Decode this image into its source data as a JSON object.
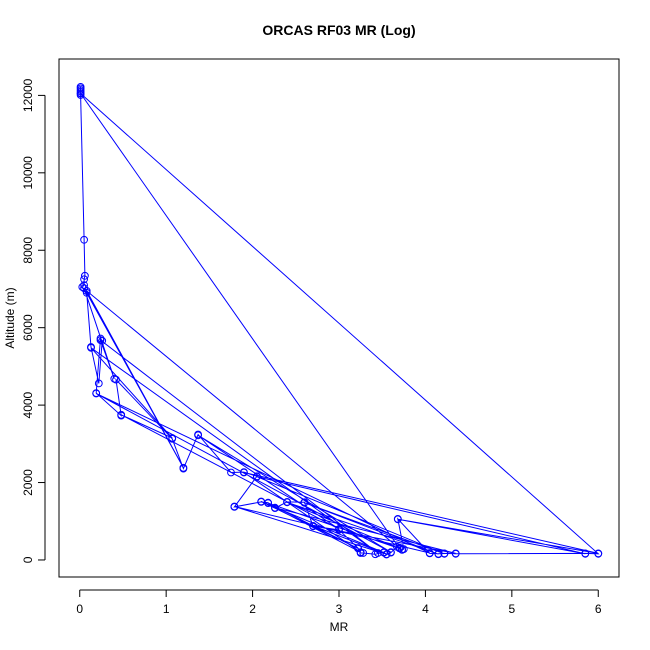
{
  "chart_data": {
    "type": "line",
    "title": "ORCAS RF03 MR (Log)",
    "xlabel": "MR",
    "ylabel": "Altitude (m)",
    "xlim": [
      -0.24,
      6.24
    ],
    "ylim": [
      -440,
      12940
    ],
    "x_ticks": [
      0,
      1,
      2,
      3,
      4,
      5,
      6
    ],
    "y_ticks": [
      0,
      2000,
      4000,
      6000,
      8000,
      10000,
      12000
    ],
    "grid": false,
    "legend": "none",
    "colors": {
      "series": "#0000ff",
      "axis": "#000000",
      "background": "#ffffff"
    },
    "series": [
      {
        "marker": "open-circle",
        "line": true,
        "points": [
          [
            0.01,
            12220
          ],
          [
            0.01,
            12180
          ],
          [
            0.01,
            12140
          ],
          [
            0.01,
            12100
          ],
          [
            0.01,
            12060
          ],
          [
            0.01,
            12010
          ],
          [
            0.05,
            8270
          ],
          [
            0.06,
            7340
          ],
          [
            0.05,
            7250
          ],
          [
            0.05,
            7100
          ],
          [
            0.03,
            7050
          ],
          [
            0.08,
            6900
          ],
          [
            0.13,
            5500
          ],
          [
            0.22,
            4560
          ],
          [
            0.26,
            5660
          ],
          [
            0.24,
            5720
          ],
          [
            0.19,
            4310
          ],
          [
            0.48,
            3730
          ],
          [
            0.42,
            4660
          ],
          [
            1.07,
            3130
          ],
          [
            1.2,
            2360
          ],
          [
            1.37,
            3240
          ],
          [
            1.75,
            2260
          ],
          [
            1.9,
            2270
          ],
          [
            2.05,
            2160
          ],
          [
            1.79,
            1370
          ],
          [
            2.1,
            1500
          ],
          [
            2.18,
            1480
          ],
          [
            2.26,
            1340
          ],
          [
            2.4,
            1500
          ],
          [
            2.6,
            1490
          ],
          [
            2.7,
            870
          ],
          [
            3.0,
            780
          ],
          [
            3.22,
            310
          ],
          [
            3.25,
            180
          ],
          [
            3.28,
            180
          ],
          [
            3.42,
            150
          ],
          [
            3.52,
            200
          ],
          [
            3.55,
            140
          ],
          [
            3.6,
            190
          ],
          [
            3.67,
            340
          ],
          [
            3.7,
            320
          ],
          [
            3.73,
            260
          ],
          [
            3.75,
            280
          ],
          [
            3.68,
            1060
          ],
          [
            4.05,
            170
          ],
          [
            4.15,
            160
          ],
          [
            4.22,
            170
          ],
          [
            4.35,
            160
          ],
          [
            5.85,
            170
          ],
          [
            6.0,
            160
          ],
          [
            0.01,
            12050
          ],
          [
            3.7,
            300
          ],
          [
            0.08,
            6950
          ],
          [
            1.2,
            2380
          ],
          [
            0.05,
            7020
          ],
          [
            0.4,
            4680
          ],
          [
            0.24,
            5680
          ],
          [
            3.45,
            180
          ],
          [
            0.13,
            5480
          ],
          [
            1.07,
            3150
          ],
          [
            0.48,
            3750
          ],
          [
            3.0,
            800
          ],
          [
            1.37,
            3220
          ],
          [
            3.6,
            200
          ],
          [
            0.19,
            4300
          ],
          [
            4.05,
            180
          ],
          [
            1.79,
            1380
          ],
          [
            3.55,
            150
          ],
          [
            2.7,
            880
          ],
          [
            4.35,
            170
          ],
          [
            2.26,
            1350
          ],
          [
            3.25,
            200
          ],
          [
            1.9,
            2260
          ],
          [
            6.0,
            170
          ],
          [
            3.68,
            1050
          ],
          [
            5.85,
            160
          ],
          [
            2.05,
            2150
          ],
          [
            4.22,
            160
          ],
          [
            2.6,
            1480
          ],
          [
            4.15,
            150
          ],
          [
            2.4,
            1490
          ],
          [
            3.73,
            270
          ],
          [
            2.18,
            1470
          ],
          [
            3.22,
            300
          ],
          [
            2.1,
            1510
          ],
          [
            3.52,
            190
          ]
        ]
      }
    ]
  }
}
